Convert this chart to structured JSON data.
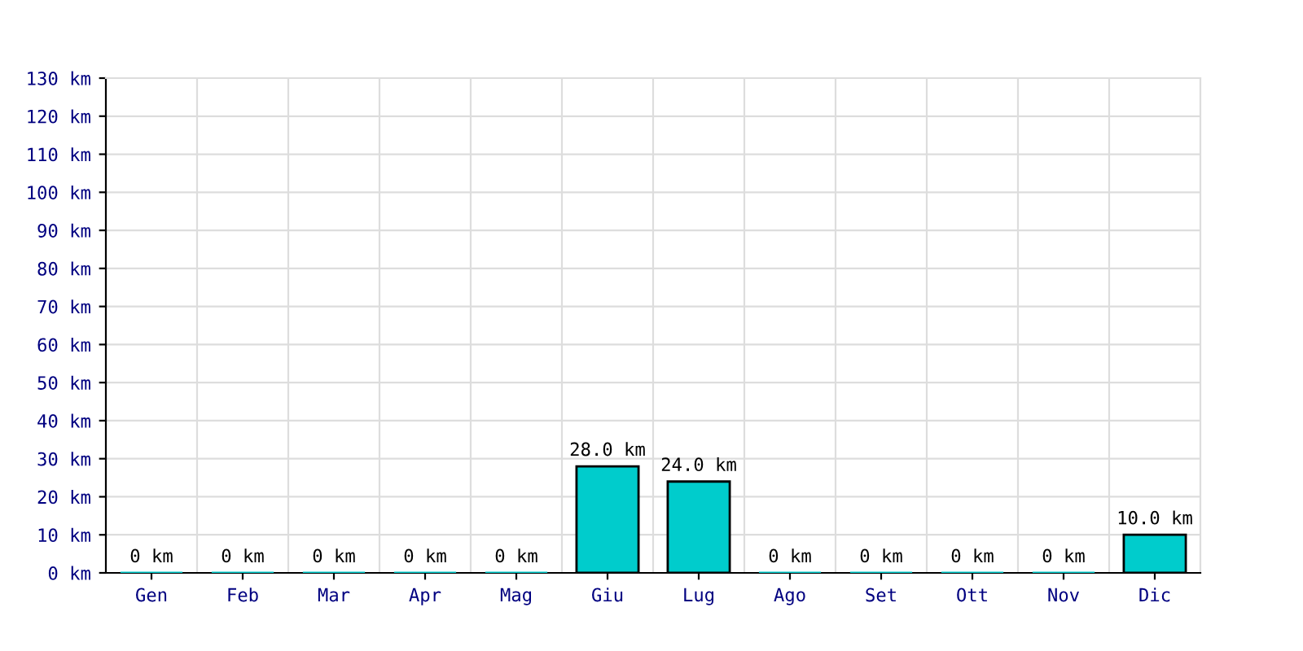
{
  "chart_data": {
    "type": "bar",
    "categories": [
      "Gen",
      "Feb",
      "Mar",
      "Apr",
      "Mag",
      "Giu",
      "Lug",
      "Ago",
      "Set",
      "Ott",
      "Nov",
      "Dic"
    ],
    "values": [
      0,
      0,
      0,
      0,
      0,
      28,
      24,
      0,
      0,
      0,
      0,
      10
    ],
    "value_labels": [
      "0 km",
      "0 km",
      "0 km",
      "0 km",
      "0 km",
      "28.0 km",
      "24.0 km",
      "0 km",
      "0 km",
      "0 km",
      "0 km",
      "10.0 km"
    ],
    "color": "#00cccc",
    "ylim": [
      0,
      130
    ],
    "yticks": [
      {
        "value": 0,
        "label": "0 km"
      },
      {
        "value": 10,
        "label": "10 km"
      },
      {
        "value": 20,
        "label": "20 km"
      },
      {
        "value": 30,
        "label": "30 km"
      },
      {
        "value": 40,
        "label": "40 km"
      },
      {
        "value": 50,
        "label": "50 km"
      },
      {
        "value": 60,
        "label": "60 km"
      },
      {
        "value": 70,
        "label": "70 km"
      },
      {
        "value": 80,
        "label": "80 km"
      },
      {
        "value": 90,
        "label": "90 km"
      },
      {
        "value": 100,
        "label": "100 km"
      },
      {
        "value": 110,
        "label": "110 km"
      },
      {
        "value": 120,
        "label": "120 km"
      },
      {
        "value": 130,
        "label": "130 km"
      }
    ],
    "grid": true
  }
}
